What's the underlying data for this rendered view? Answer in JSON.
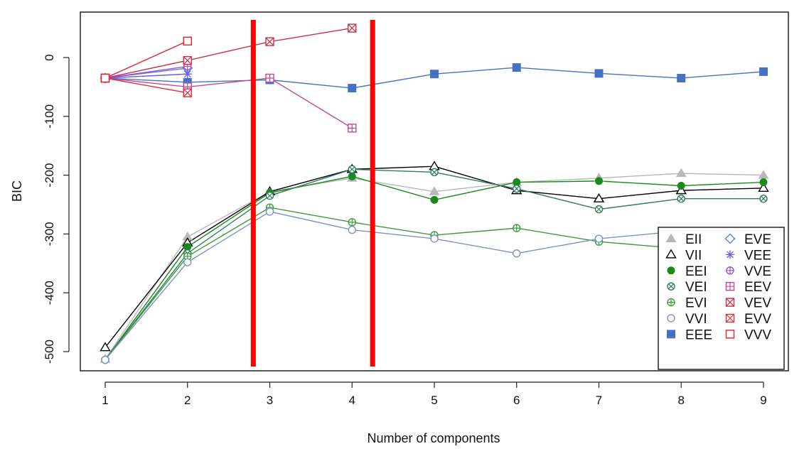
{
  "chart_data": {
    "type": "line",
    "title": "",
    "xlabel": "Number of components",
    "ylabel": "BIC",
    "x": [
      1,
      2,
      3,
      4,
      5,
      6,
      7,
      8,
      9
    ],
    "xlim": [
      1,
      9
    ],
    "ylim": [
      -500,
      0
    ],
    "yticks": [
      0,
      -100,
      -200,
      -300,
      -400,
      -500
    ],
    "xticks": [
      1,
      2,
      3,
      4,
      5,
      6,
      7,
      8,
      9
    ],
    "grid": false,
    "legend_position": "bottom-right",
    "series": [
      {
        "name": "EII",
        "color": "#b8b8b8",
        "marker": "triangle-filled",
        "values": [
          -513,
          -305,
          -228,
          -205,
          -228,
          -212,
          -205,
          -197,
          -200
        ]
      },
      {
        "name": "VII",
        "color": "#000000",
        "marker": "triangle-open",
        "values": [
          -493,
          -315,
          -228,
          -190,
          -185,
          -226,
          -240,
          -226,
          -222
        ]
      },
      {
        "name": "EEI",
        "color": "#1a8a1a",
        "marker": "circle-filled",
        "values": [
          -514,
          -322,
          -230,
          -202,
          -242,
          -212,
          -210,
          -218,
          -212
        ]
      },
      {
        "name": "VEI",
        "color": "#2e7d5b",
        "marker": "circle-x",
        "values": [
          -514,
          -333,
          -235,
          -190,
          -195,
          -223,
          -258,
          -240,
          -240
        ]
      },
      {
        "name": "EVI",
        "color": "#3c9b3c",
        "marker": "circle-plus",
        "values": [
          -514,
          -338,
          -255,
          -280,
          -302,
          -290,
          -313,
          -325,
          null
        ]
      },
      {
        "name": "VVI",
        "color": "#7a93c4",
        "marker": "circle-open",
        "values": [
          -514,
          -348,
          -262,
          -293,
          -308,
          -333,
          -308,
          -295,
          null
        ]
      },
      {
        "name": "EEE",
        "color": "#4472c4",
        "marker": "square-filled",
        "values": [
          -35,
          -42,
          -38,
          -52,
          -28,
          -17,
          -27,
          -35,
          -24
        ]
      },
      {
        "name": "EVE",
        "color": "#5b7fd9",
        "marker": "diamond-open",
        "values": [
          -35,
          -18,
          null,
          null,
          null,
          null,
          null,
          null,
          null
        ]
      },
      {
        "name": "VEE",
        "color": "#6b5be0",
        "marker": "asterisk",
        "values": [
          -35,
          -28,
          null,
          null,
          null,
          null,
          null,
          null,
          null
        ]
      },
      {
        "name": "VVE",
        "color": "#9b4fd0",
        "marker": "circle-plus",
        "values": [
          -35,
          -15,
          null,
          null,
          null,
          null,
          null,
          null,
          null
        ]
      },
      {
        "name": "EEV",
        "color": "#c04a95",
        "marker": "square-plus",
        "values": [
          -35,
          -50,
          -35,
          -120,
          null,
          null,
          null,
          null,
          null
        ]
      },
      {
        "name": "VEV",
        "color": "#c8304a",
        "marker": "square-x",
        "values": [
          -35,
          -5,
          27,
          50,
          null,
          null,
          null,
          null,
          null
        ]
      },
      {
        "name": "EVV",
        "color": "#d9303d",
        "marker": "square-x",
        "values": [
          -35,
          -60,
          null,
          null,
          null,
          null,
          null,
          null,
          null
        ]
      },
      {
        "name": "VVV",
        "color": "#e0202a",
        "marker": "square-open",
        "values": [
          -35,
          28,
          null,
          null,
          null,
          null,
          null,
          null,
          null
        ]
      }
    ],
    "annotations": [
      {
        "type": "vertical-line",
        "x": 2.8,
        "color": "#ff0000"
      },
      {
        "type": "vertical-line",
        "x": 4.25,
        "color": "#ff0000"
      }
    ]
  }
}
